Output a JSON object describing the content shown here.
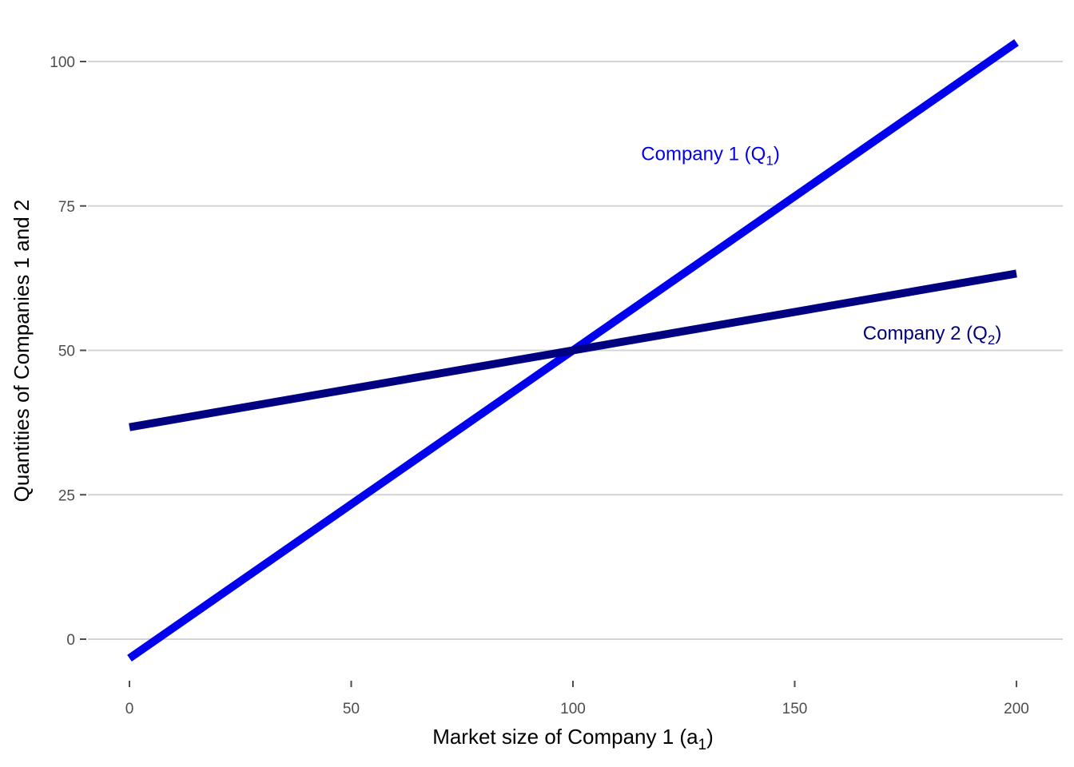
{
  "chart_data": {
    "type": "line",
    "xlabel": {
      "main": "Market size of Company 1  (a",
      "sub": "1",
      "close": ")"
    },
    "ylabel": "Quantities of Companies 1 and 2",
    "xlim": [
      0,
      200
    ],
    "ylim": [
      -3,
      104
    ],
    "x_ticks": [
      0,
      50,
      100,
      150,
      200
    ],
    "y_ticks": [
      0,
      25,
      50,
      75,
      100
    ],
    "grid": {
      "horizontal_major": true,
      "vertical": false
    },
    "series": [
      {
        "id": "company1",
        "label_main": "Company 1 (Q",
        "label_sub": "1",
        "label_close": ")",
        "color": "#0000ee",
        "x": [
          0,
          200
        ],
        "y": [
          -3.3,
          103.3
        ],
        "label_at": [
          131,
          84
        ]
      },
      {
        "id": "company2",
        "label_main": "Company 2 (Q",
        "label_sub": "2",
        "label_close": ")",
        "color": "#000080",
        "x": [
          0,
          200
        ],
        "y": [
          36.7,
          63.3
        ],
        "label_at": [
          181,
          53
        ]
      }
    ]
  }
}
